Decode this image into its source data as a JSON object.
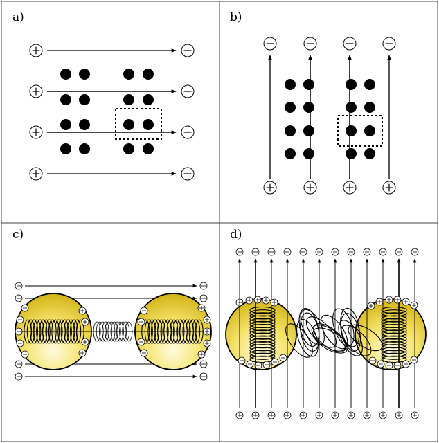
{
  "panels": {
    "a": {
      "label": "a)"
    },
    "b": {
      "label": "b)"
    },
    "c": {
      "label": "c)"
    },
    "d": {
      "label": "d)"
    }
  },
  "symbols": {
    "plus": "+",
    "minus": "−"
  },
  "colors": {
    "frame": "#444444",
    "ink": "#000000",
    "sphere_light": "#fffbe0",
    "sphere_mid": "#f5e36a",
    "sphere_dark": "#c9a600"
  }
}
